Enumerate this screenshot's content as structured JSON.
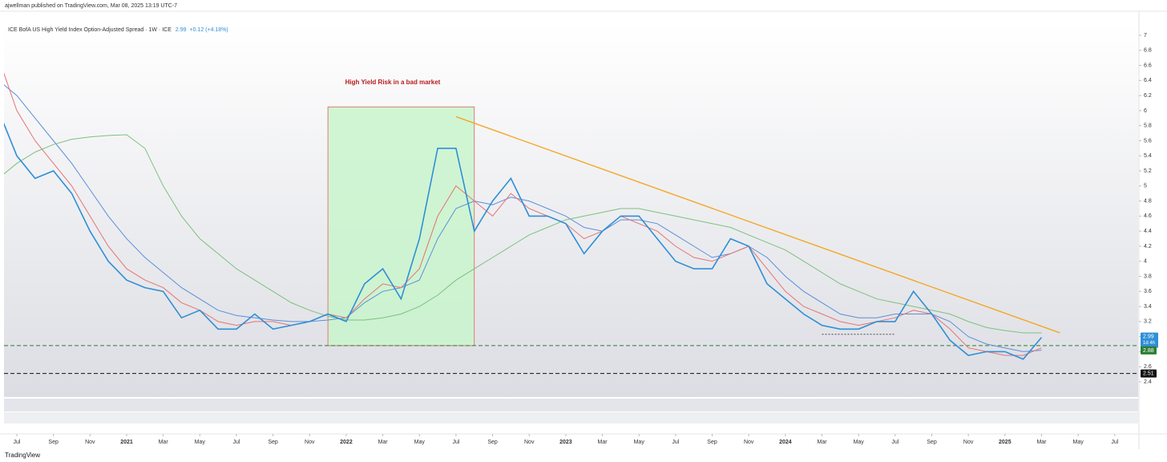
{
  "header": "ajwellman published on TradingView.com, Mar 08, 2025 13:19 UTC-7",
  "footer": "TradingView",
  "chart_data": {
    "type": "line",
    "title": "ICE BofA US High Yield Index Option-Adjusted Spread · 1W · ICE",
    "last_value": 2.99,
    "change_label": "+0.12 (+4.18%)",
    "countdown": "1d 4h",
    "annotation": "High Yield Risk in a bad market",
    "x": [
      "2020-06",
      "2020-07",
      "2020-08",
      "2020-09",
      "2020-10",
      "2020-11",
      "2020-12",
      "2021-01",
      "2021-02",
      "2021-03",
      "2021-04",
      "2021-05",
      "2021-06",
      "2021-07",
      "2021-08",
      "2021-09",
      "2021-10",
      "2021-11",
      "2021-12",
      "2022-01",
      "2022-02",
      "2022-03",
      "2022-04",
      "2022-05",
      "2022-06",
      "2022-07",
      "2022-08",
      "2022-09",
      "2022-10",
      "2022-11",
      "2022-12",
      "2023-01",
      "2023-02",
      "2023-03",
      "2023-04",
      "2023-05",
      "2023-06",
      "2023-07",
      "2023-08",
      "2023-09",
      "2023-10",
      "2023-11",
      "2023-12",
      "2024-01",
      "2024-02",
      "2024-03",
      "2024-04",
      "2024-05",
      "2024-06",
      "2024-07",
      "2024-08",
      "2024-09",
      "2024-10",
      "2024-11",
      "2024-12",
      "2025-01",
      "2025-02",
      "2025-03"
    ],
    "series": [
      {
        "color": "#5b8fd9",
        "values": [
          6.4,
          6.2,
          5.9,
          5.6,
          5.3,
          4.95,
          4.6,
          4.3,
          4.05,
          3.85,
          3.65,
          3.5,
          3.35,
          3.28,
          3.25,
          3.22,
          3.2,
          3.2,
          3.22,
          3.25,
          3.45,
          3.6,
          3.65,
          3.75,
          4.3,
          4.7,
          4.8,
          4.75,
          4.85,
          4.8,
          4.7,
          4.6,
          4.45,
          4.4,
          4.55,
          4.55,
          4.5,
          4.35,
          4.2,
          4.05,
          4.1,
          4.2,
          4.05,
          3.8,
          3.6,
          3.45,
          3.3,
          3.25,
          3.25,
          3.3,
          3.3,
          3.3,
          3.2,
          3.0,
          2.9,
          2.85,
          2.8,
          2.82
        ]
      },
      {
        "color": "#e57373",
        "values": [
          6.7,
          6.0,
          5.6,
          5.3,
          5.0,
          4.6,
          4.2,
          3.9,
          3.75,
          3.65,
          3.45,
          3.35,
          3.2,
          3.15,
          3.2,
          3.2,
          3.15,
          3.2,
          3.3,
          3.25,
          3.5,
          3.7,
          3.65,
          3.9,
          4.6,
          5.0,
          4.8,
          4.6,
          4.9,
          4.7,
          4.6,
          4.5,
          4.3,
          4.4,
          4.6,
          4.5,
          4.4,
          4.2,
          4.05,
          4.0,
          4.1,
          4.2,
          3.9,
          3.6,
          3.4,
          3.3,
          3.2,
          3.15,
          3.2,
          3.25,
          3.35,
          3.3,
          3.1,
          2.85,
          2.8,
          2.75,
          2.75,
          2.85
        ]
      },
      {
        "color": "#7cc17e",
        "values": [
          5.1,
          5.3,
          5.45,
          5.55,
          5.62,
          5.65,
          5.67,
          5.68,
          5.5,
          5.0,
          4.6,
          4.3,
          4.1,
          3.9,
          3.75,
          3.6,
          3.45,
          3.35,
          3.27,
          3.22,
          3.22,
          3.25,
          3.3,
          3.4,
          3.55,
          3.75,
          3.9,
          4.05,
          4.2,
          4.35,
          4.45,
          4.55,
          4.6,
          4.65,
          4.7,
          4.7,
          4.65,
          4.6,
          4.55,
          4.5,
          4.45,
          4.35,
          4.25,
          4.15,
          4.0,
          3.85,
          3.7,
          3.6,
          3.5,
          3.45,
          3.4,
          3.35,
          3.3,
          3.2,
          3.12,
          3.08,
          3.05,
          3.05
        ]
      },
      {
        "color": "#2f8fd6",
        "values": [
          6.0,
          5.4,
          5.1,
          5.2,
          4.9,
          4.4,
          4.0,
          3.75,
          3.65,
          3.6,
          3.25,
          3.35,
          3.1,
          3.1,
          3.3,
          3.1,
          3.15,
          3.2,
          3.3,
          3.2,
          3.7,
          3.9,
          3.5,
          4.3,
          5.5,
          5.5,
          4.4,
          4.8,
          5.1,
          4.6,
          4.6,
          4.5,
          4.1,
          4.4,
          4.6,
          4.6,
          4.3,
          4.0,
          3.9,
          3.9,
          4.3,
          4.2,
          3.7,
          3.5,
          3.3,
          3.15,
          3.1,
          3.1,
          3.2,
          3.2,
          3.6,
          3.3,
          2.95,
          2.75,
          2.8,
          2.8,
          2.7,
          2.99
        ]
      }
    ],
    "box": {
      "x": [
        "2021-12",
        "2022-08"
      ],
      "y": [
        6.05,
        2.88
      ],
      "color": "#c9f5cc",
      "border": "#e06060"
    },
    "trendline": {
      "x": [
        "2022-07",
        "2025-04"
      ],
      "y": [
        5.92,
        3.05
      ],
      "color": "#f5a623"
    },
    "support": {
      "x": [
        "2024-03",
        "2024-07"
      ],
      "y": 3.03
    },
    "hlines": [
      {
        "value": 2.88,
        "color": "#2e7d32"
      },
      {
        "value": 2.51,
        "color": "#111111"
      }
    ],
    "ylim": [
      2.2,
      7.15
    ],
    "yticks": [
      2.4,
      2.6,
      2.8,
      3,
      3.2,
      3.4,
      3.6,
      3.8,
      4,
      4.2,
      4.4,
      4.6,
      4.8,
      5,
      5.2,
      5.4,
      5.6,
      5.8,
      6,
      6.2,
      6.4,
      6.6,
      6.8,
      7
    ],
    "xticks": [
      {
        "value": "2020-07",
        "label": "Jul"
      },
      {
        "value": "2020-09",
        "label": "Sep"
      },
      {
        "value": "2020-11",
        "label": "Nov"
      },
      {
        "value": "2021-01",
        "label": "2021"
      },
      {
        "value": "2021-03",
        "label": "Mar"
      },
      {
        "value": "2021-05",
        "label": "May"
      },
      {
        "value": "2021-07",
        "label": "Jul"
      },
      {
        "value": "2021-09",
        "label": "Sep"
      },
      {
        "value": "2021-11",
        "label": "Nov"
      },
      {
        "value": "2022-01",
        "label": "2022"
      },
      {
        "value": "2022-03",
        "label": "Mar"
      },
      {
        "value": "2022-05",
        "label": "May"
      },
      {
        "value": "2022-07",
        "label": "Jul"
      },
      {
        "value": "2022-09",
        "label": "Sep"
      },
      {
        "value": "2022-11",
        "label": "Nov"
      },
      {
        "value": "2023-01",
        "label": "2023"
      },
      {
        "value": "2023-03",
        "label": "Mar"
      },
      {
        "value": "2023-05",
        "label": "May"
      },
      {
        "value": "2023-07",
        "label": "Jul"
      },
      {
        "value": "2023-09",
        "label": "Sep"
      },
      {
        "value": "2023-11",
        "label": "Nov"
      },
      {
        "value": "2024-01",
        "label": "2024"
      },
      {
        "value": "2024-03",
        "label": "Mar"
      },
      {
        "value": "2024-05",
        "label": "May"
      },
      {
        "value": "2024-07",
        "label": "Jul"
      },
      {
        "value": "2024-09",
        "label": "Sep"
      },
      {
        "value": "2024-11",
        "label": "Nov"
      },
      {
        "value": "2025-01",
        "label": "2025"
      },
      {
        "value": "2025-03",
        "label": "Mar"
      },
      {
        "value": "2025-05",
        "label": "May"
      },
      {
        "value": "2025-07",
        "label": "Jul"
      }
    ]
  }
}
